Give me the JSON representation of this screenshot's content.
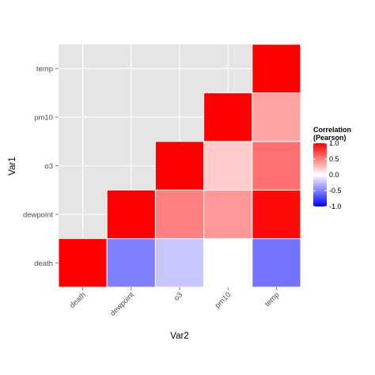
{
  "chart_data": {
    "type": "heatmap",
    "x_categories": [
      "death",
      "dewpoint",
      "o3",
      "pm10",
      "temp"
    ],
    "y_categories": [
      "death",
      "dewpoint",
      "o3",
      "pm10",
      "temp"
    ],
    "xlabel": "Var2",
    "ylabel": "Var1",
    "cells": [
      {
        "x": "death",
        "y": "death",
        "value": 1.0
      },
      {
        "x": "dewpoint",
        "y": "death",
        "value": -0.5
      },
      {
        "x": "o3",
        "y": "death",
        "value": -0.22
      },
      {
        "x": "pm10",
        "y": "death",
        "value": 0.0
      },
      {
        "x": "temp",
        "y": "death",
        "value": -0.55
      },
      {
        "x": "dewpoint",
        "y": "dewpoint",
        "value": 1.0
      },
      {
        "x": "o3",
        "y": "dewpoint",
        "value": 0.5
      },
      {
        "x": "pm10",
        "y": "dewpoint",
        "value": 0.4
      },
      {
        "x": "temp",
        "y": "dewpoint",
        "value": 0.97
      },
      {
        "x": "o3",
        "y": "o3",
        "value": 1.0
      },
      {
        "x": "pm10",
        "y": "o3",
        "value": 0.2
      },
      {
        "x": "temp",
        "y": "o3",
        "value": 0.56
      },
      {
        "x": "pm10",
        "y": "pm10",
        "value": 1.0
      },
      {
        "x": "temp",
        "y": "pm10",
        "value": 0.36
      },
      {
        "x": "temp",
        "y": "temp",
        "value": 1.0
      }
    ],
    "legend": {
      "title_lines": [
        "Correlation",
        "(Pearson)"
      ],
      "range": [
        -1,
        1
      ],
      "ticks": [
        1.0,
        0.5,
        0.0,
        -0.5,
        -1.0
      ],
      "tick_labels": [
        "1.0",
        "0.5",
        "0.0",
        "-0.5",
        "-1.0"
      ],
      "placement": "right"
    },
    "colors": {
      "low": "#0000ff",
      "mid": "#ffffff",
      "high": "#ff0000",
      "panel_background": "#e5e5e5",
      "grid": "#ffffff"
    },
    "grid": true
  }
}
